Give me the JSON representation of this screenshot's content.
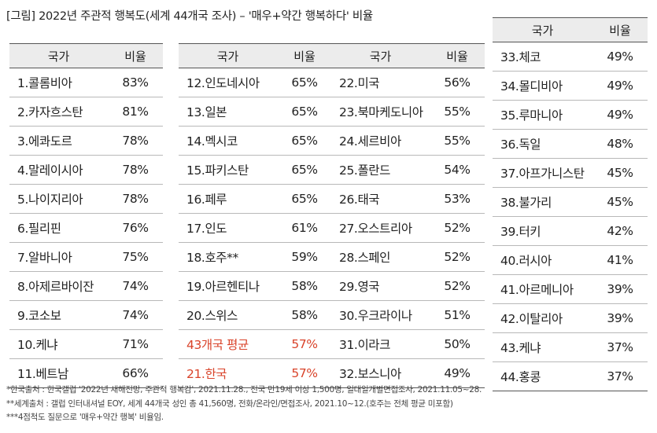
{
  "title": "[그림] 2022년 주관적 행복도(세계 44개국 조사) – '매우+약간 행복하다' 비율",
  "header": {
    "country": "국가",
    "ratio": "비율"
  },
  "tables": [
    {
      "rows": [
        {
          "country": "1.콜롬비아",
          "ratio": "83%"
        },
        {
          "country": "2.카자흐스탄",
          "ratio": "81%"
        },
        {
          "country": "3.에콰도르",
          "ratio": "78%"
        },
        {
          "country": "4.말레이시아",
          "ratio": "78%"
        },
        {
          "country": "5.나이지리아",
          "ratio": "78%"
        },
        {
          "country": "6.필리핀",
          "ratio": "76%"
        },
        {
          "country": "7.알바니아",
          "ratio": "75%"
        },
        {
          "country": "8.아제르바이잔",
          "ratio": "74%"
        },
        {
          "country": "9.코소보",
          "ratio": "74%"
        },
        {
          "country": "10.케냐",
          "ratio": "71%"
        },
        {
          "country": "11.베트남",
          "ratio": "66%"
        }
      ]
    },
    {
      "rows": [
        {
          "country": "12.인도네시아",
          "ratio": "65%"
        },
        {
          "country": "13.일본",
          "ratio": "65%"
        },
        {
          "country": "14.멕시코",
          "ratio": "65%"
        },
        {
          "country": "15.파키스탄",
          "ratio": "65%"
        },
        {
          "country": "16.페루",
          "ratio": "65%"
        },
        {
          "country": "17.인도",
          "ratio": "61%"
        },
        {
          "country": "18.호주**",
          "ratio": "59%"
        },
        {
          "country": "19.아르헨티나",
          "ratio": "58%"
        },
        {
          "country": "20.스위스",
          "ratio": "58%"
        },
        {
          "country": "43개국 평균",
          "ratio": "57%",
          "highlight": true
        },
        {
          "country": "21.한국",
          "ratio": "57%",
          "highlight": true
        }
      ]
    },
    {
      "rows": [
        {
          "country": "22.미국",
          "ratio": "56%"
        },
        {
          "country": "23.북마케도니아",
          "ratio": "55%"
        },
        {
          "country": "24.세르비아",
          "ratio": "55%"
        },
        {
          "country": "25.폴란드",
          "ratio": "54%"
        },
        {
          "country": "26.태국",
          "ratio": "53%"
        },
        {
          "country": "27.오스트리아",
          "ratio": "52%"
        },
        {
          "country": "28.스페인",
          "ratio": "52%"
        },
        {
          "country": "29.영국",
          "ratio": "52%"
        },
        {
          "country": "30.우크라이나",
          "ratio": "51%"
        },
        {
          "country": "31.이라크",
          "ratio": "50%"
        },
        {
          "country": "32.보스니아",
          "ratio": "49%"
        }
      ]
    },
    {
      "rows": [
        {
          "country": "33.체코",
          "ratio": "49%"
        },
        {
          "country": "34.몰디비아",
          "ratio": "49%"
        },
        {
          "country": "35.루마니아",
          "ratio": "49%"
        },
        {
          "country": "36.독일",
          "ratio": "48%"
        },
        {
          "country": "37.아프가니스탄",
          "ratio": "45%"
        },
        {
          "country": "38.불가리",
          "ratio": "45%"
        },
        {
          "country": "39.터키",
          "ratio": "42%"
        },
        {
          "country": "40.러시아",
          "ratio": "41%"
        },
        {
          "country": "41.아르메니아",
          "ratio": "39%"
        },
        {
          "country": "42.이탈리아",
          "ratio": "39%"
        },
        {
          "country": "43.케냐",
          "ratio": "37%"
        },
        {
          "country": "44.홍콩",
          "ratio": "37%"
        }
      ]
    }
  ],
  "notes": [
    "*한국출처 : 한국갤럽 '2022년 새해전망, 주관적 행복감', 2021.11.28., 전국 만19세 이상 1,500명, 일대일개별면접조사, 2021.11.05~28.",
    "**세계출처 : 갤럽 인터내셔널 EOY, 세계 44개국 성인 총 41,560명, 전화/온라인/면접조사, 2021.10~12.(호주는 전체 평균 미포함)",
    "***4점척도 질문으로 '매우+약간 행복' 비율임."
  ],
  "colors": {
    "highlight": "#d9432a",
    "header_bg": "#ececec"
  }
}
